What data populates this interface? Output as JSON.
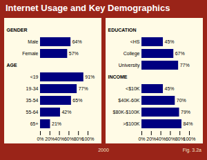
{
  "title": "Internet Usage and Key Demographics",
  "caption": "2000",
  "figure_label": "Fig. 3.2a",
  "chart_data": [
    {
      "type": "bar",
      "orientation": "horizontal",
      "data_labels": true,
      "color": "#000080",
      "categories": [
        "GENDER",
        "Male",
        "Female",
        "AGE",
        "<19",
        "19-34",
        "35-54",
        "55-64",
        "65+"
      ],
      "values": [
        null,
        64,
        57,
        null,
        91,
        77,
        65,
        42,
        21
      ],
      "value_labels": [
        null,
        "64%",
        "57%",
        null,
        "91%",
        "77%",
        "65%",
        "42%",
        "21%"
      ],
      "xlim": [
        0,
        100
      ],
      "xticks": [
        {
          "value": 0,
          "label": "0%"
        },
        {
          "value": 20,
          "label": "20%"
        },
        {
          "value": 40,
          "label": "40%"
        },
        {
          "value": 60,
          "label": "60%"
        },
        {
          "value": 80,
          "label": "80%"
        },
        {
          "value": 100,
          "label": "100%"
        }
      ]
    },
    {
      "type": "bar",
      "orientation": "horizontal",
      "data_labels": true,
      "color": "#000080",
      "categories": [
        "EDUCATION",
        "<HS",
        "College",
        "University",
        "INCOME",
        "<$10K",
        "$40K-60K",
        "$80K-$100K",
        ">$100K"
      ],
      "values": [
        null,
        45,
        67,
        77,
        null,
        45,
        70,
        79,
        84
      ],
      "value_labels": [
        null,
        "45%",
        "67%",
        "77%",
        null,
        "45%",
        "70%",
        "79%",
        "84%"
      ],
      "xlim": [
        0,
        100
      ],
      "xticks": [
        {
          "value": 0,
          "label": "0%"
        },
        {
          "value": 20,
          "label": "20%"
        },
        {
          "value": 40,
          "label": "40%"
        },
        {
          "value": 60,
          "label": "60%"
        },
        {
          "value": 80,
          "label": "80%"
        },
        {
          "value": 100,
          "label": "100%"
        }
      ]
    }
  ]
}
